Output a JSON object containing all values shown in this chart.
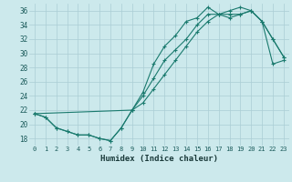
{
  "xlabel": "Humidex (Indice chaleur)",
  "bg_color": "#cce9ec",
  "grid_color": "#aacdd4",
  "line_color": "#1a7a6e",
  "xlim": [
    -0.5,
    23.5
  ],
  "ylim": [
    17.0,
    37.0
  ],
  "xticks": [
    0,
    1,
    2,
    3,
    4,
    5,
    6,
    7,
    8,
    9,
    10,
    11,
    12,
    13,
    14,
    15,
    16,
    17,
    18,
    19,
    20,
    21,
    22,
    23
  ],
  "yticks": [
    18,
    20,
    22,
    24,
    26,
    28,
    30,
    32,
    34,
    36
  ],
  "line1_x": [
    0,
    1,
    2,
    3,
    4,
    5,
    6,
    7,
    8,
    9,
    10,
    11,
    12,
    13,
    14,
    15,
    16,
    17,
    18,
    19,
    20,
    21,
    22,
    23
  ],
  "line1_y": [
    21.5,
    21.0,
    19.5,
    19.0,
    18.5,
    18.5,
    18.0,
    17.7,
    19.5,
    22.0,
    24.5,
    28.5,
    31.0,
    32.5,
    34.5,
    35.0,
    36.5,
    35.5,
    35.0,
    35.5,
    36.0,
    34.5,
    32.0,
    29.5
  ],
  "line2_x": [
    0,
    9,
    10,
    11,
    12,
    13,
    14,
    15,
    16,
    17,
    18,
    19,
    20,
    21,
    22,
    23
  ],
  "line2_y": [
    21.5,
    22.0,
    23.0,
    25.0,
    27.0,
    29.0,
    31.0,
    33.0,
    34.5,
    35.5,
    36.0,
    36.5,
    36.0,
    34.5,
    28.5,
    29.0
  ],
  "line3_x": [
    0,
    1,
    2,
    3,
    4,
    5,
    6,
    7,
    8,
    9,
    10,
    11,
    12,
    13,
    14,
    15,
    16,
    17,
    18,
    19,
    20,
    21,
    22,
    23
  ],
  "line3_y": [
    21.5,
    21.0,
    19.5,
    19.0,
    18.5,
    18.5,
    18.0,
    17.7,
    19.5,
    22.0,
    24.0,
    26.5,
    29.0,
    30.5,
    32.0,
    34.0,
    35.5,
    35.5,
    35.5,
    35.5,
    36.0,
    34.5,
    32.0,
    29.5
  ]
}
